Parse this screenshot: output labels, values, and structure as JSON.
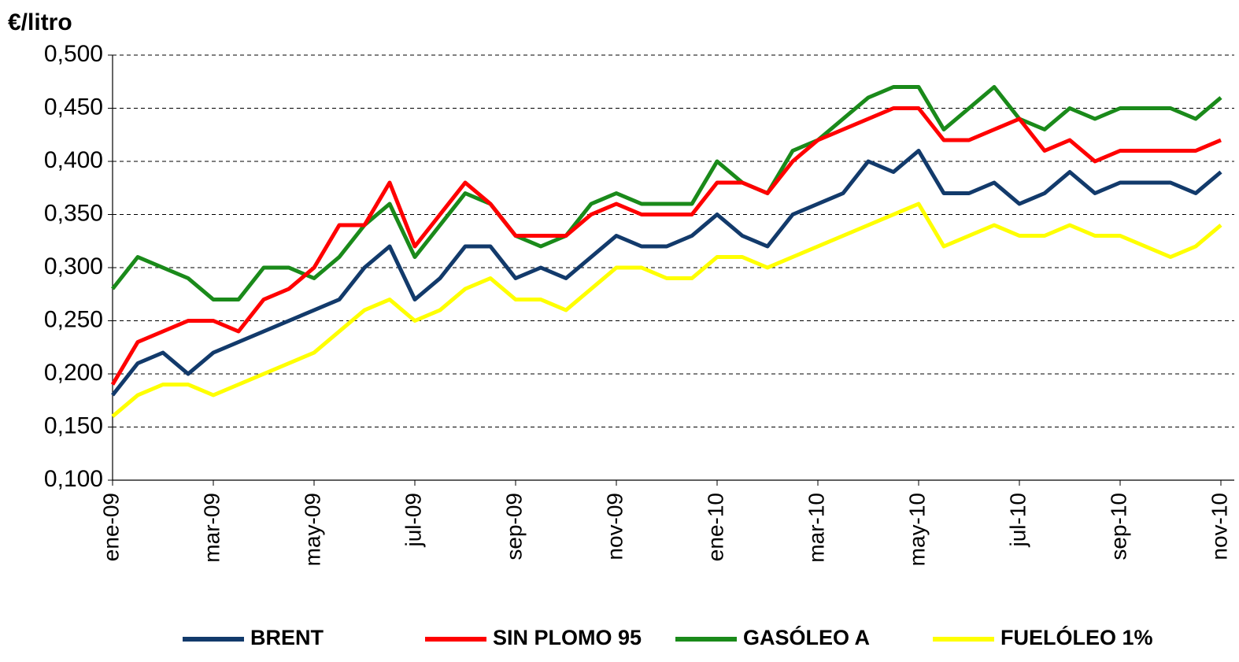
{
  "chart_data": {
    "type": "line",
    "y_axis_label": "€/litro",
    "categories": [
      "ene-09",
      null,
      null,
      null,
      "mar-09",
      null,
      null,
      null,
      "may-09",
      null,
      null,
      null,
      "jul-09",
      null,
      null,
      null,
      "sep-09",
      null,
      null,
      null,
      "nov-09",
      null,
      null,
      null,
      "ene-10",
      null,
      null,
      null,
      "mar-10",
      null,
      null,
      null,
      "may-10",
      null,
      null,
      null,
      "jul-10",
      null,
      null,
      null,
      "sep-10",
      null,
      null,
      null,
      "nov-10"
    ],
    "series": [
      {
        "name": "BRENT",
        "color": "#123a6b",
        "values": [
          0.18,
          0.21,
          0.22,
          0.2,
          0.22,
          0.23,
          0.24,
          0.25,
          0.26,
          0.27,
          0.3,
          0.32,
          0.27,
          0.29,
          0.32,
          0.32,
          0.29,
          0.3,
          0.29,
          0.31,
          0.33,
          0.32,
          0.32,
          0.33,
          0.35,
          0.33,
          0.32,
          0.35,
          0.36,
          0.37,
          0.4,
          0.39,
          0.41,
          0.37,
          0.37,
          0.38,
          0.36,
          0.37,
          0.39,
          0.37,
          0.38,
          0.38,
          0.38,
          0.37,
          0.39
        ]
      },
      {
        "name": "SIN PLOMO 95",
        "color": "#ff0000",
        "values": [
          0.19,
          0.23,
          0.24,
          0.25,
          0.25,
          0.24,
          0.27,
          0.28,
          0.3,
          0.34,
          0.34,
          0.38,
          0.32,
          0.35,
          0.38,
          0.36,
          0.33,
          0.33,
          0.33,
          0.35,
          0.36,
          0.35,
          0.35,
          0.35,
          0.38,
          0.38,
          0.37,
          0.4,
          0.42,
          0.43,
          0.44,
          0.45,
          0.45,
          0.42,
          0.42,
          0.43,
          0.44,
          0.41,
          0.42,
          0.4,
          0.41,
          0.41,
          0.41,
          0.41,
          0.42
        ]
      },
      {
        "name": "GASÓLEO A",
        "color": "#1a8a1a",
        "values": [
          0.28,
          0.31,
          0.3,
          0.29,
          0.27,
          0.27,
          0.3,
          0.3,
          0.29,
          0.31,
          0.34,
          0.36,
          0.31,
          0.34,
          0.37,
          0.36,
          0.33,
          0.32,
          0.33,
          0.36,
          0.37,
          0.36,
          0.36,
          0.36,
          0.4,
          0.38,
          0.37,
          0.41,
          0.42,
          0.44,
          0.46,
          0.47,
          0.47,
          0.43,
          0.45,
          0.47,
          0.44,
          0.43,
          0.45,
          0.44,
          0.45,
          0.45,
          0.45,
          0.44,
          0.46
        ]
      },
      {
        "name": "FUELÓLEO 1%",
        "color": "#ffff00",
        "values": [
          0.16,
          0.18,
          0.19,
          0.19,
          0.18,
          0.19,
          0.2,
          0.21,
          0.22,
          0.24,
          0.26,
          0.27,
          0.25,
          0.26,
          0.28,
          0.29,
          0.27,
          0.27,
          0.26,
          0.28,
          0.3,
          0.3,
          0.29,
          0.29,
          0.31,
          0.31,
          0.3,
          0.31,
          0.32,
          0.33,
          0.34,
          0.35,
          0.36,
          0.32,
          0.33,
          0.34,
          0.33,
          0.33,
          0.34,
          0.33,
          0.33,
          0.32,
          0.31,
          0.32,
          0.34
        ]
      }
    ],
    "ylim": [
      0.1,
      0.5
    ],
    "yticks": [
      {
        "value": 0.1,
        "label": "0,100"
      },
      {
        "value": 0.15,
        "label": "0,150"
      },
      {
        "value": 0.2,
        "label": "0,200"
      },
      {
        "value": 0.25,
        "label": "0,250"
      },
      {
        "value": 0.3,
        "label": "0,300"
      },
      {
        "value": 0.35,
        "label": "0,350"
      },
      {
        "value": 0.4,
        "label": "0,400"
      },
      {
        "value": 0.45,
        "label": "0,450"
      },
      {
        "value": 0.5,
        "label": "0,500"
      }
    ],
    "grid": true,
    "legend": "bottom"
  }
}
